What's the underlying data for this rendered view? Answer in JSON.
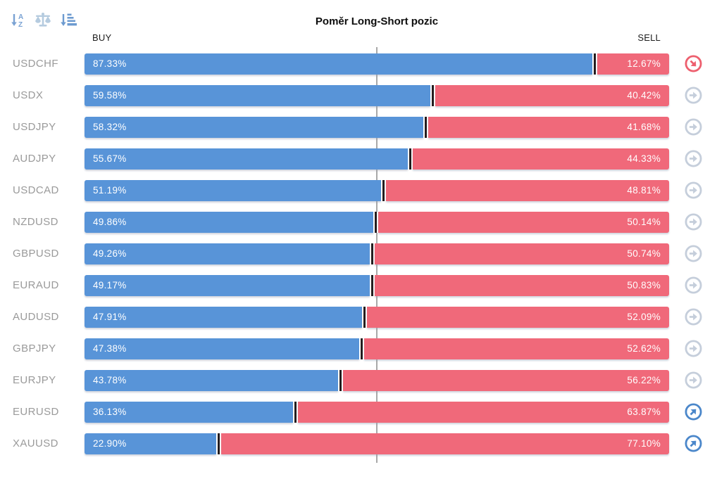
{
  "title": "Poměr Long-Short pozic",
  "axis": {
    "buy": "BUY",
    "sell": "SELL"
  },
  "toolbar": {
    "icons": [
      "sort-alphabetical-icon",
      "balance-scale-icon",
      "sort-amount-icon"
    ]
  },
  "colors": {
    "buy_bar": "#5894d8",
    "sell_bar": "#f0697a",
    "bar_divider": "#241d1f",
    "pair_label": "#9a9a9a",
    "center_line": "#a8a8a8",
    "trend_flat": "#c5cedb",
    "trend_up": "#4b87ca",
    "trend_down": "#ed5f6e"
  },
  "chart_data": {
    "type": "bar",
    "orientation": "horizontal",
    "title": "Poměr Long-Short pozic",
    "categories": [
      "USDCHF",
      "USDX",
      "USDJPY",
      "AUDJPY",
      "USDCAD",
      "NZDUSD",
      "GBPUSD",
      "EURAUD",
      "AUDUSD",
      "GBPJPY",
      "EURJPY",
      "EURUSD",
      "XAUUSD"
    ],
    "series": [
      {
        "name": "BUY",
        "values": [
          87.33,
          59.58,
          58.32,
          55.67,
          51.19,
          49.86,
          49.26,
          49.17,
          47.91,
          47.38,
          43.78,
          36.13,
          22.9
        ]
      },
      {
        "name": "SELL",
        "values": [
          12.67,
          40.42,
          41.68,
          44.33,
          48.81,
          50.14,
          50.74,
          50.83,
          52.09,
          52.62,
          56.22,
          63.87,
          77.1
        ]
      }
    ],
    "value_format": "percent-2dp",
    "xlim": [
      0,
      100
    ],
    "center_reference": 50,
    "trend_icons": [
      "down",
      "flat",
      "flat",
      "flat",
      "flat",
      "flat",
      "flat",
      "flat",
      "flat",
      "flat",
      "flat",
      "up",
      "up"
    ],
    "legend_position": "top",
    "grid": false
  }
}
